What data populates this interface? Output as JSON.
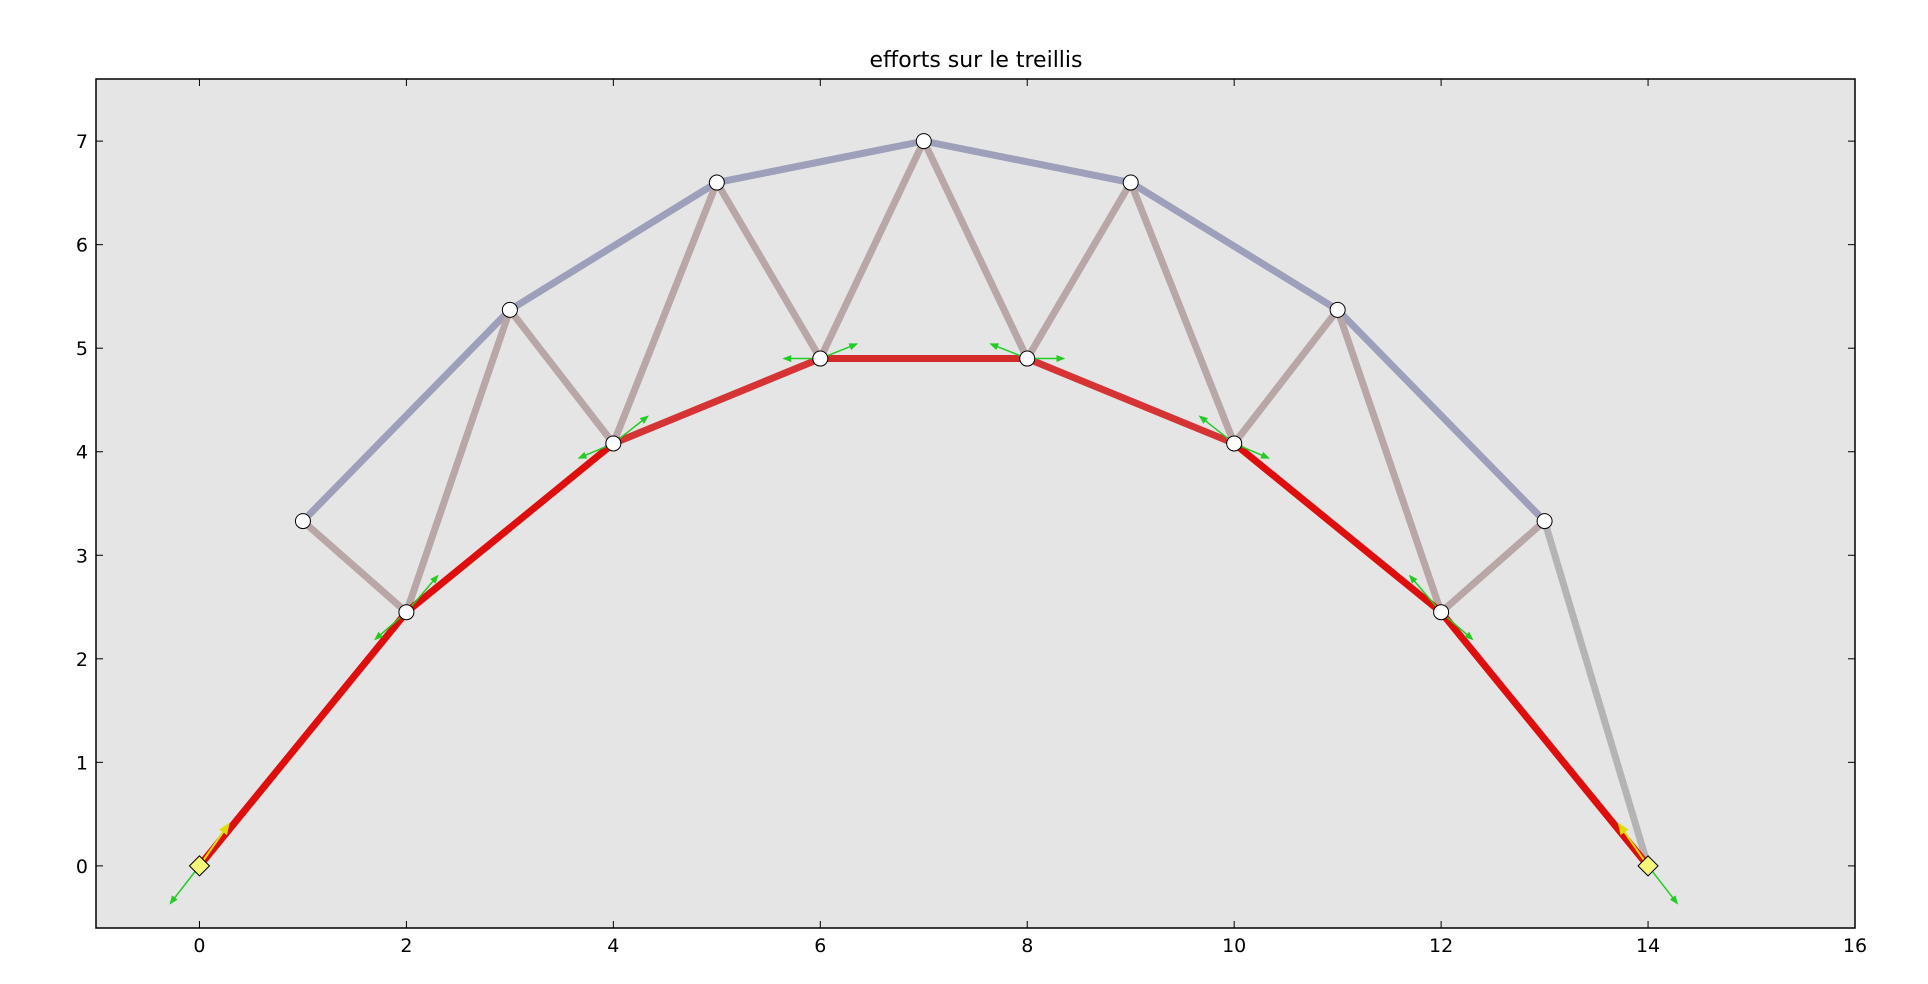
{
  "chart_data": {
    "type": "scatter",
    "title": "efforts sur le treillis",
    "xlabel": "",
    "ylabel": "",
    "xlim": [
      -1,
      16
    ],
    "ylim": [
      -0.6,
      7.6
    ],
    "x_ticks": [
      0,
      2,
      4,
      6,
      8,
      10,
      12,
      14,
      16
    ],
    "y_ticks": [
      0,
      1,
      2,
      3,
      4,
      5,
      6,
      7
    ],
    "grid": false,
    "legend": "none",
    "colors": {
      "background": "#e5e5e5",
      "upper_chord": "#9e9fba",
      "diagonal": "#b9a6a6",
      "end_diagonal": "#b4b4b4",
      "lower_chord_high": "#e00d0d",
      "lower_chord_mid": "#d42a2a",
      "lower_chord_low": "#d63434",
      "support": "#f5f57a",
      "force_arrow": "#22cc22",
      "reaction_arrow": "#dddd00"
    },
    "nodes": [
      {
        "x": 0,
        "y": 0,
        "kind": "support"
      },
      {
        "x": 1,
        "y": 3.33,
        "kind": "joint"
      },
      {
        "x": 2,
        "y": 2.45,
        "kind": "joint"
      },
      {
        "x": 3,
        "y": 5.37,
        "kind": "joint"
      },
      {
        "x": 4,
        "y": 4.08,
        "kind": "joint"
      },
      {
        "x": 5,
        "y": 6.6,
        "kind": "joint"
      },
      {
        "x": 6,
        "y": 4.9,
        "kind": "joint"
      },
      {
        "x": 7,
        "y": 7.0,
        "kind": "joint"
      },
      {
        "x": 8,
        "y": 4.9,
        "kind": "joint"
      },
      {
        "x": 9,
        "y": 6.6,
        "kind": "joint"
      },
      {
        "x": 10,
        "y": 4.08,
        "kind": "joint"
      },
      {
        "x": 11,
        "y": 5.37,
        "kind": "joint"
      },
      {
        "x": 12,
        "y": 2.45,
        "kind": "joint"
      },
      {
        "x": 13,
        "y": 3.33,
        "kind": "joint"
      },
      {
        "x": 14,
        "y": 0,
        "kind": "support"
      }
    ],
    "members": [
      {
        "from": 1,
        "to": 3,
        "color": "#9e9fba"
      },
      {
        "from": 3,
        "to": 5,
        "color": "#9e9fba"
      },
      {
        "from": 5,
        "to": 7,
        "color": "#9e9fba"
      },
      {
        "from": 7,
        "to": 9,
        "color": "#9e9fba"
      },
      {
        "from": 9,
        "to": 11,
        "color": "#9e9fba"
      },
      {
        "from": 11,
        "to": 13,
        "color": "#9e9fba"
      },
      {
        "from": 1,
        "to": 2,
        "color": "#b9a6a6"
      },
      {
        "from": 2,
        "to": 3,
        "color": "#b9a6a6"
      },
      {
        "from": 3,
        "to": 4,
        "color": "#b9a6a6"
      },
      {
        "from": 4,
        "to": 5,
        "color": "#b9a6a6"
      },
      {
        "from": 5,
        "to": 6,
        "color": "#b9a6a6"
      },
      {
        "from": 6,
        "to": 7,
        "color": "#b9a6a6"
      },
      {
        "from": 7,
        "to": 8,
        "color": "#b9a6a6"
      },
      {
        "from": 8,
        "to": 9,
        "color": "#b9a6a6"
      },
      {
        "from": 9,
        "to": 10,
        "color": "#b9a6a6"
      },
      {
        "from": 10,
        "to": 11,
        "color": "#b9a6a6"
      },
      {
        "from": 11,
        "to": 12,
        "color": "#b9a6a6"
      },
      {
        "from": 12,
        "to": 13,
        "color": "#b9a6a6"
      },
      {
        "from": 13,
        "to": 14,
        "color": "#b4b4b4"
      },
      {
        "from": 0,
        "to": 2,
        "color": "#e00d0d"
      },
      {
        "from": 2,
        "to": 4,
        "color": "#e00d0d"
      },
      {
        "from": 4,
        "to": 6,
        "color": "#d63434"
      },
      {
        "from": 6,
        "to": 8,
        "color": "#d42a2a"
      },
      {
        "from": 8,
        "to": 10,
        "color": "#d63434"
      },
      {
        "from": 10,
        "to": 12,
        "color": "#e00d0d"
      },
      {
        "from": 12,
        "to": 14,
        "color": "#e00d0d"
      }
    ],
    "force_arrows": [
      {
        "x": 0,
        "y": 0,
        "dx": -0.28,
        "dy": -0.36
      },
      {
        "x": 14,
        "y": 0,
        "dx": 0.28,
        "dy": -0.36
      },
      {
        "x": 2,
        "y": 2.45,
        "dx": 0.3,
        "dy": 0.35
      },
      {
        "x": 2,
        "y": 2.45,
        "dx": -0.3,
        "dy": -0.26
      },
      {
        "x": 4,
        "y": 4.08,
        "dx": 0.33,
        "dy": 0.26
      },
      {
        "x": 4,
        "y": 4.08,
        "dx": -0.33,
        "dy": -0.14
      },
      {
        "x": 6,
        "y": 4.9,
        "dx": 0.35,
        "dy": 0.14
      },
      {
        "x": 6,
        "y": 4.9,
        "dx": -0.35,
        "dy": 0
      },
      {
        "x": 8,
        "y": 4.9,
        "dx": -0.35,
        "dy": 0.14
      },
      {
        "x": 8,
        "y": 4.9,
        "dx": 0.35,
        "dy": 0
      },
      {
        "x": 10,
        "y": 4.08,
        "dx": -0.33,
        "dy": 0.26
      },
      {
        "x": 10,
        "y": 4.08,
        "dx": 0.33,
        "dy": -0.14
      },
      {
        "x": 12,
        "y": 2.45,
        "dx": -0.3,
        "dy": 0.35
      },
      {
        "x": 12,
        "y": 2.45,
        "dx": 0.3,
        "dy": -0.26
      }
    ],
    "reaction_arrows": [
      {
        "x": 0,
        "y": 0,
        "dx": 0.28,
        "dy": 0.4
      },
      {
        "x": 14,
        "y": 0,
        "dx": -0.28,
        "dy": 0.4
      }
    ]
  }
}
